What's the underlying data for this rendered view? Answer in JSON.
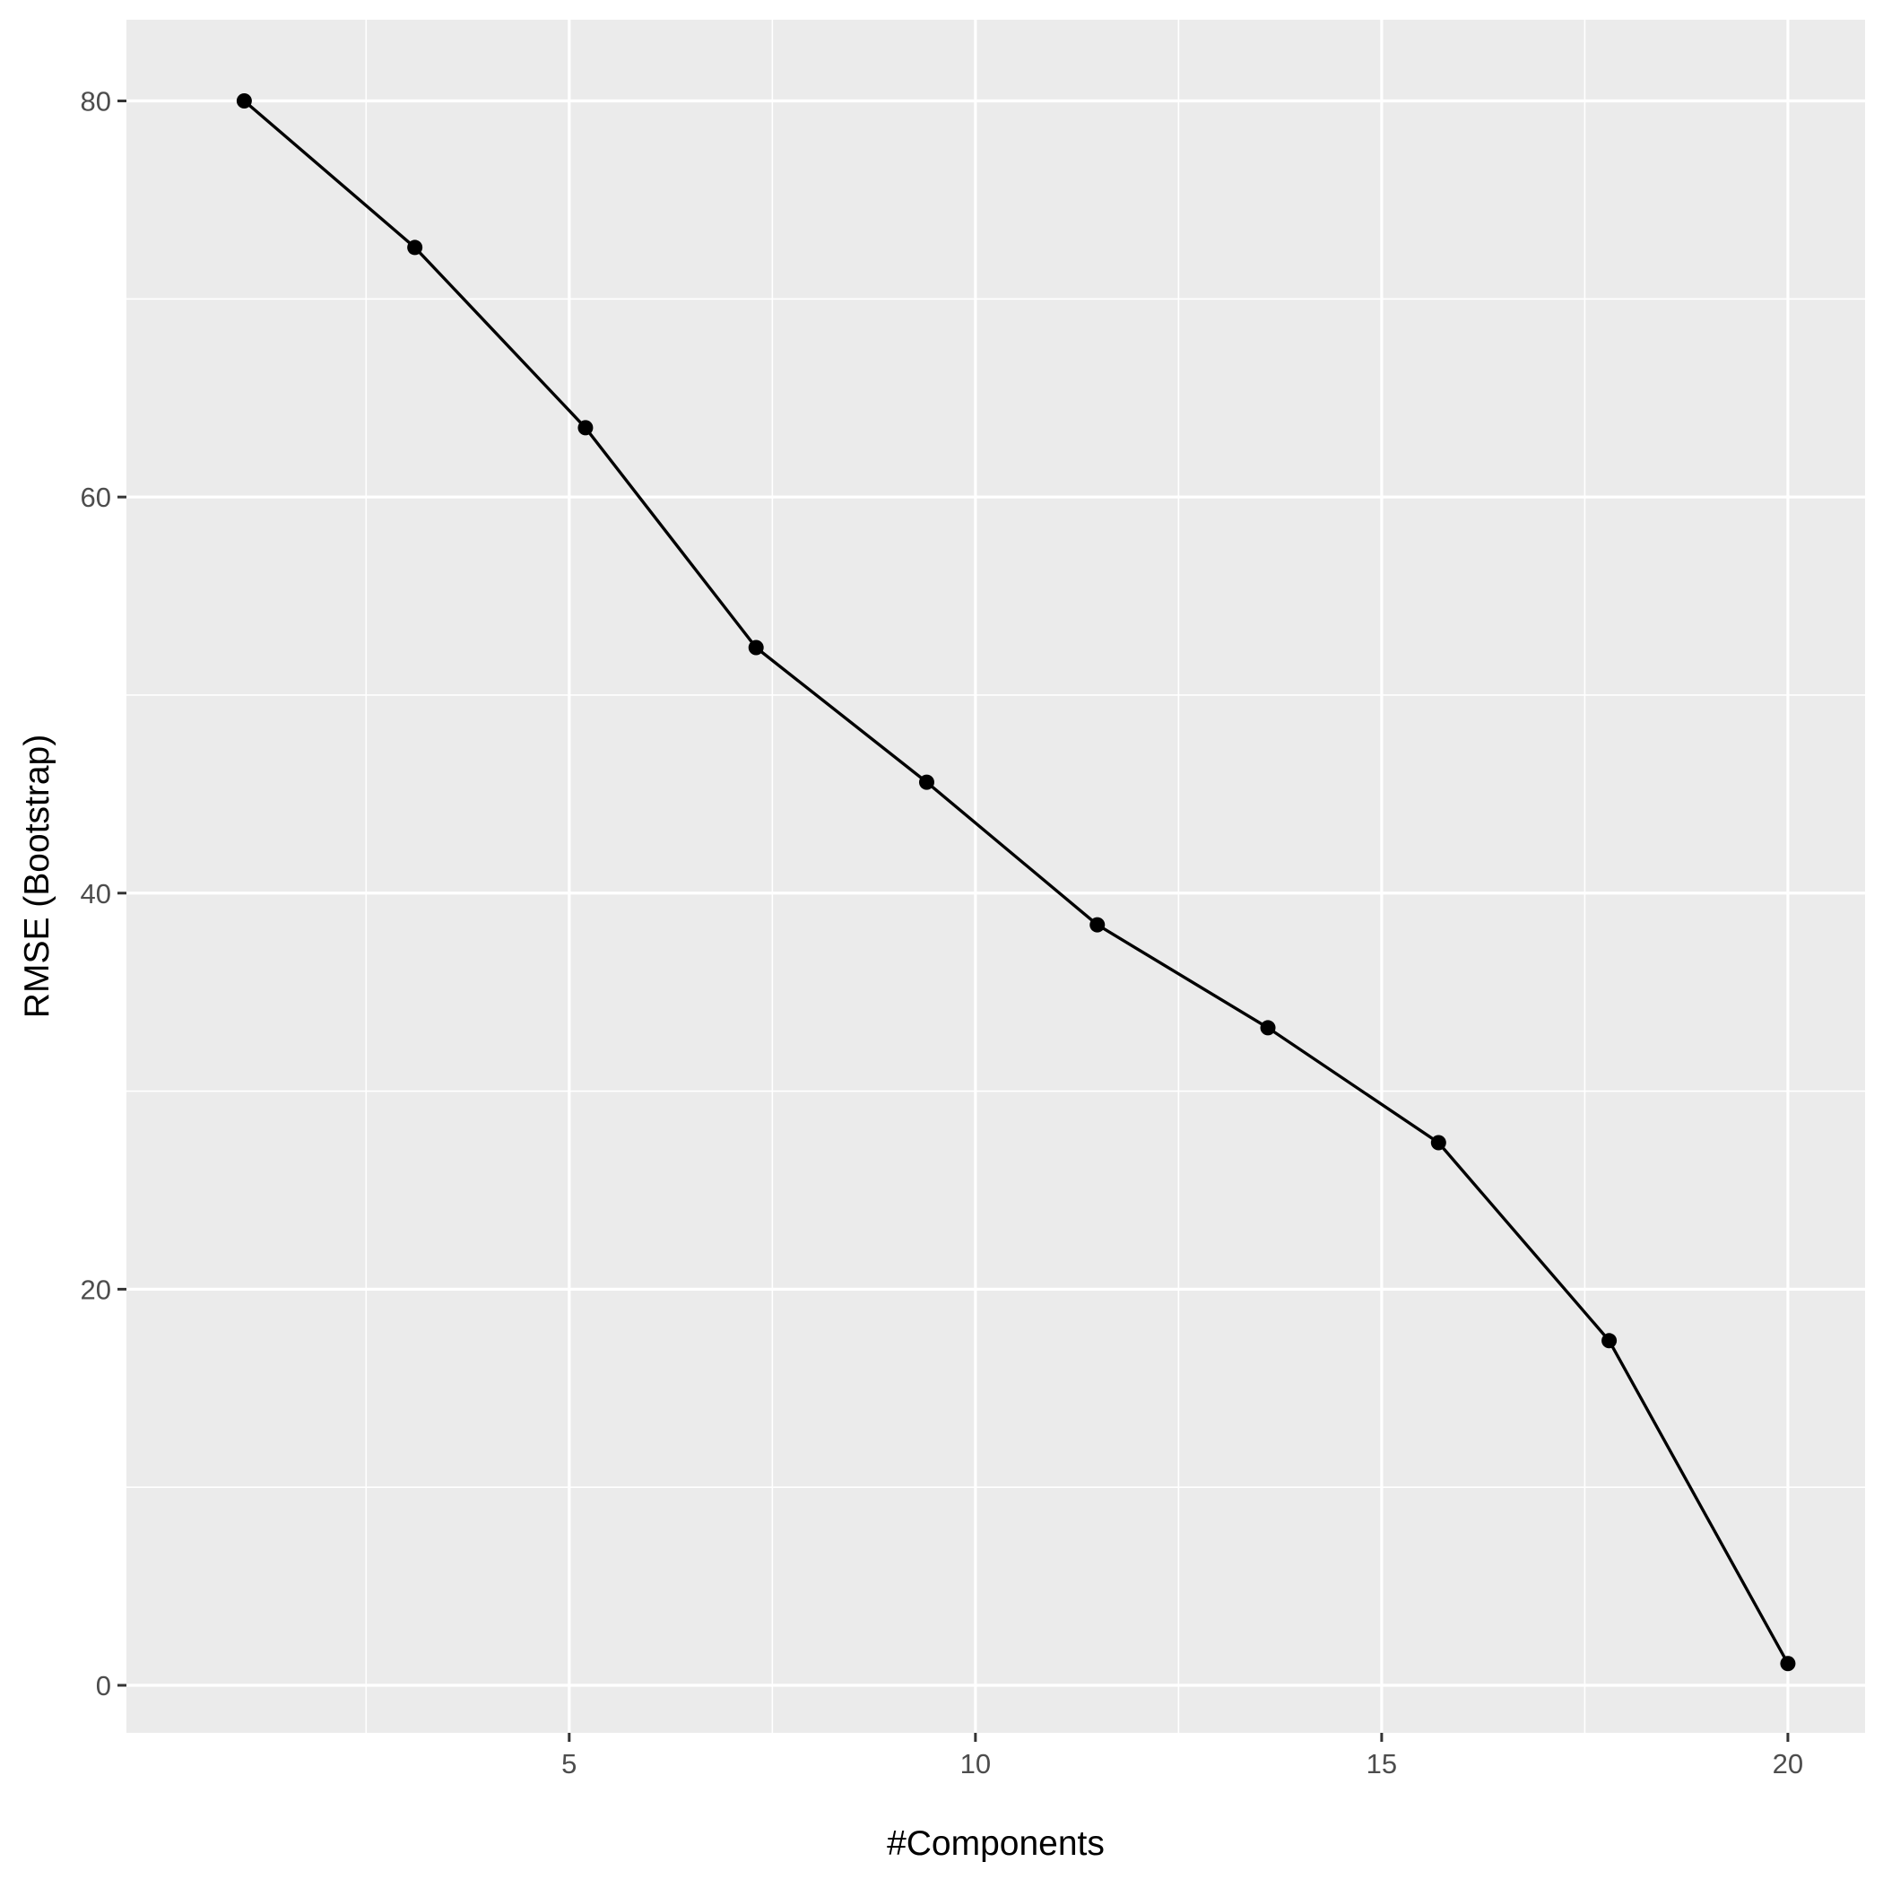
{
  "chart_data": {
    "type": "line",
    "title": "",
    "xlabel": "#Components",
    "ylabel": "RMSE (Bootstrap)",
    "x": [
      1,
      3.1,
      5.2,
      7.3,
      9.4,
      11.5,
      13.6,
      15.7,
      17.8,
      20
    ],
    "series": [
      {
        "values": [
          80,
          72.6,
          63.5,
          52.4,
          45.6,
          38.4,
          33.2,
          27.4,
          17.4,
          1.1
        ]
      }
    ],
    "xlim": [
      -0.45,
      20.95
    ],
    "ylim": [
      -2.4,
      84.1
    ],
    "xticks": [
      5,
      10,
      15,
      20
    ],
    "xtick_labels": [
      "5",
      "10",
      "15",
      "20"
    ],
    "yticks": [
      0,
      20,
      40,
      60,
      80
    ],
    "ytick_labels": [
      "0",
      "20",
      "40",
      "60",
      "80"
    ],
    "grid": true,
    "legend": "none",
    "colors": {
      "panel_background": "#ebebeb",
      "grid_major": "#ffffff",
      "grid_minor": "#ffffff",
      "line": "#000000",
      "point": "#000000",
      "tick_label": "#4d4d4d",
      "axis_title": "#000000",
      "tick_mark": "#333333"
    }
  }
}
